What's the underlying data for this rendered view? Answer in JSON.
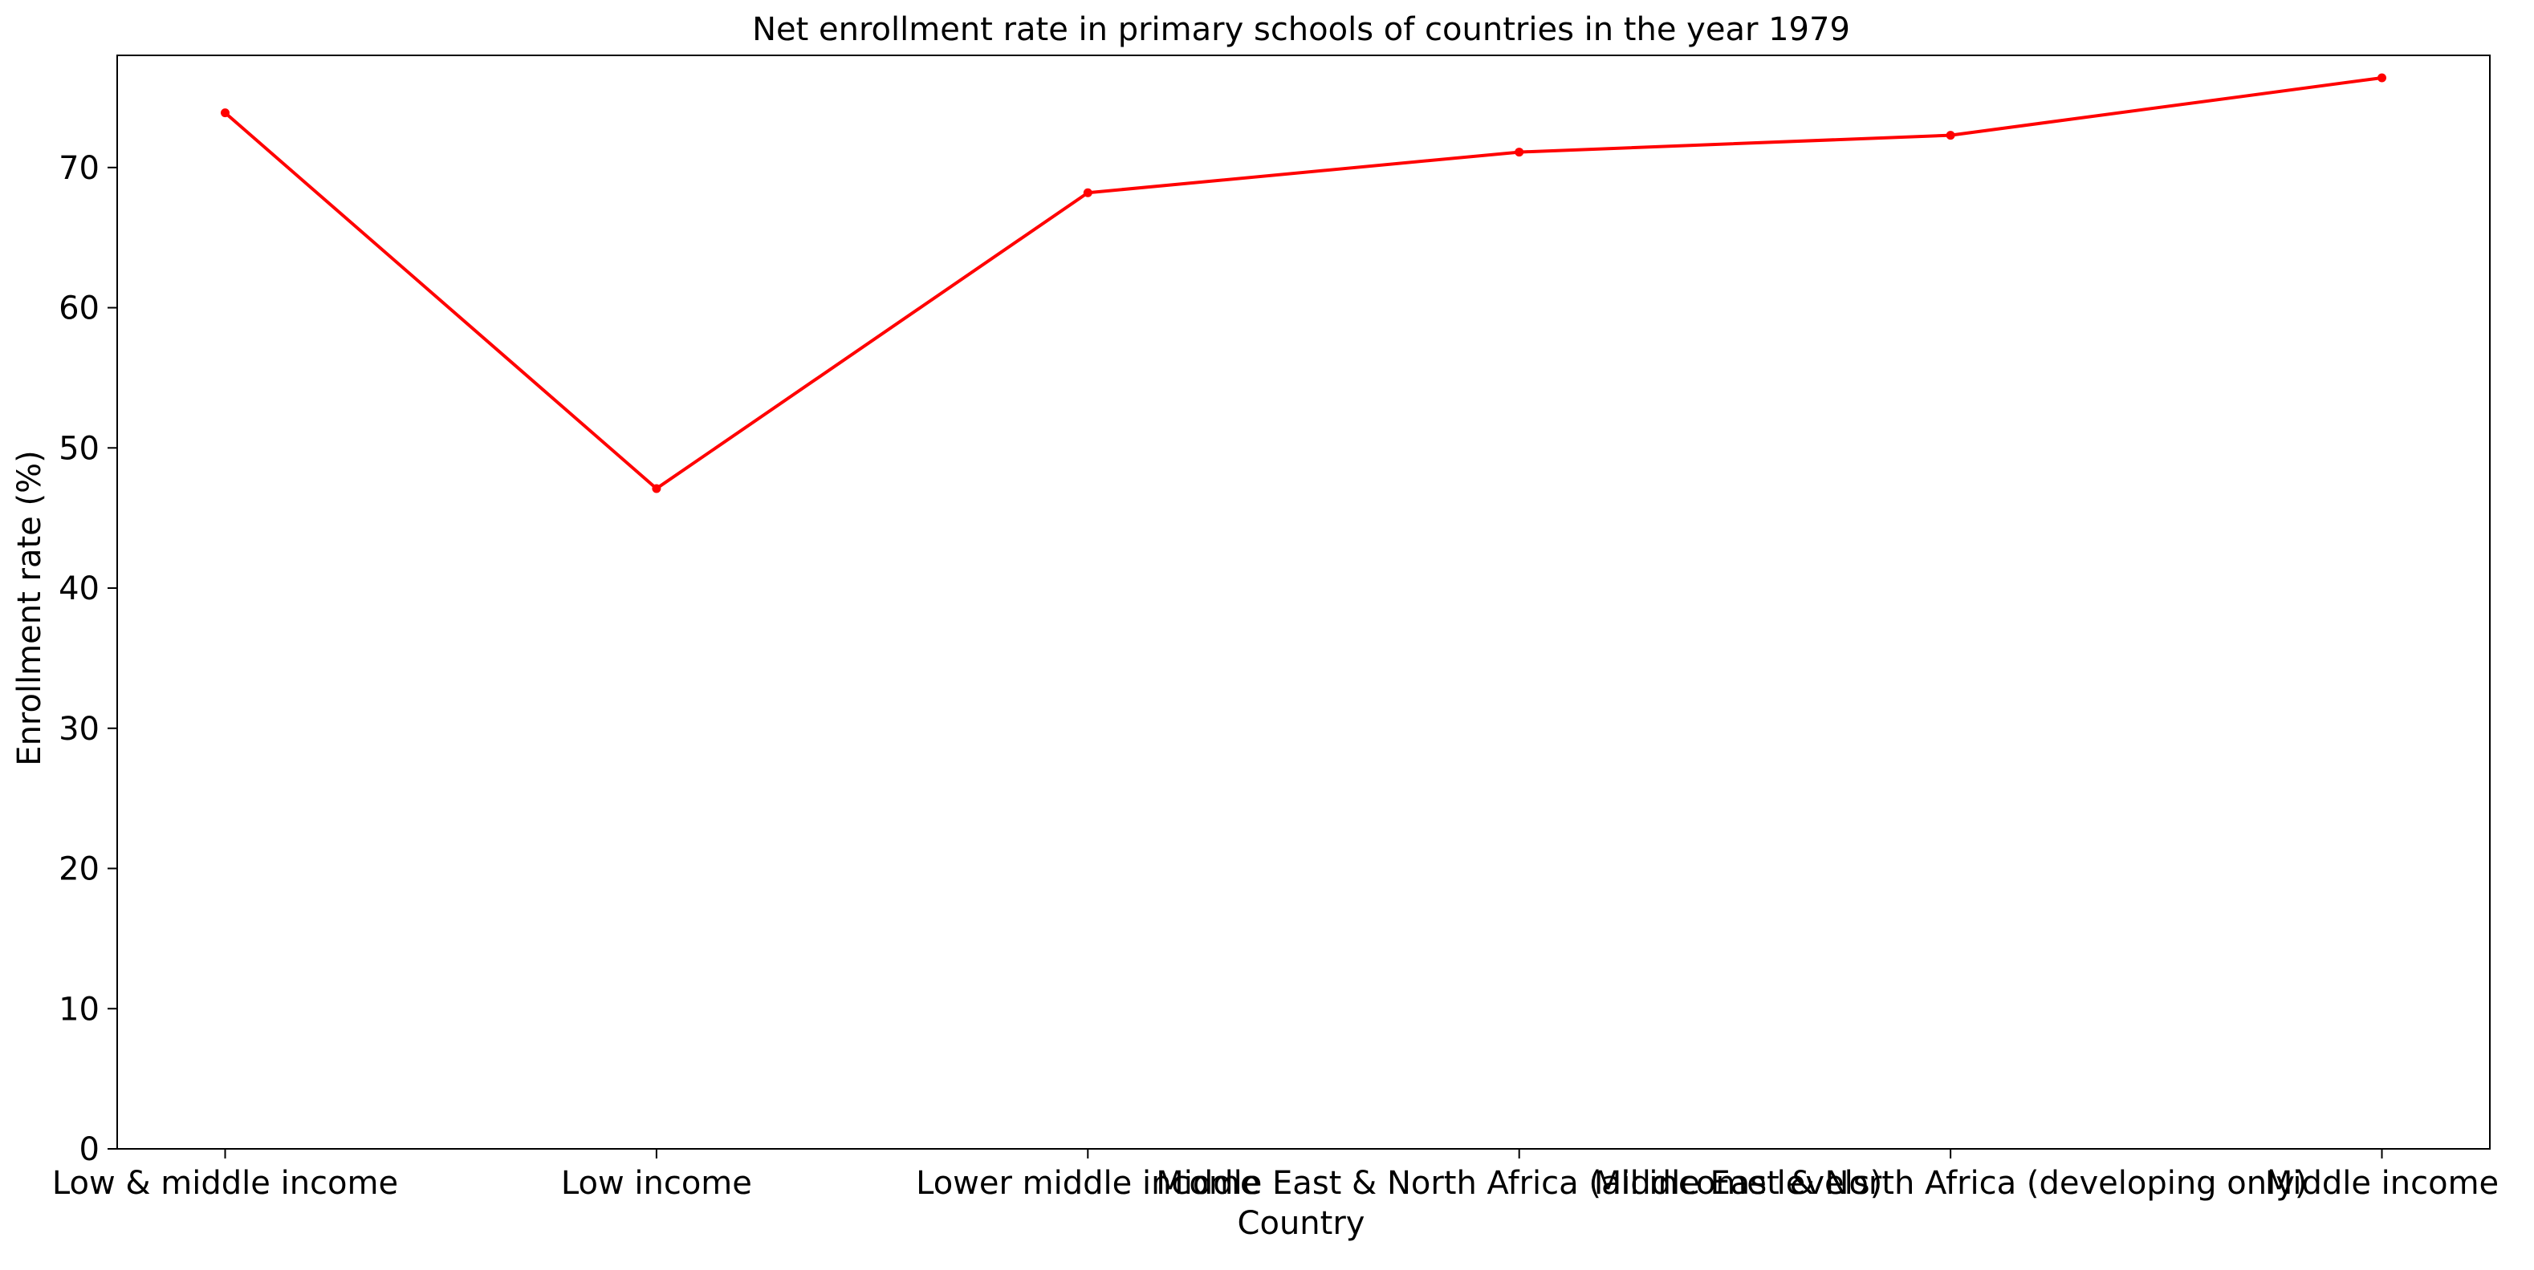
{
  "chart_data": {
    "type": "line",
    "title": "Net enrollment rate in primary schools of countries in the year 1979",
    "xlabel": "Country",
    "ylabel": "Enrollment rate (%)",
    "categories": [
      "Low & middle income",
      "Low income",
      "Lower middle income",
      "Middle East & North Africa (all income levels)",
      "Middle East & North Africa (developing only)",
      "Middle income"
    ],
    "series": [
      {
        "values": [
          73.9,
          47.1,
          68.2,
          71.1,
          72.3,
          76.4
        ],
        "color": "#ff0000",
        "marker": "circle"
      }
    ],
    "ylim": [
      0,
      78
    ],
    "yticks": [
      0,
      10,
      20,
      30,
      40,
      50,
      60,
      70
    ],
    "grid": false,
    "legend": "none"
  }
}
